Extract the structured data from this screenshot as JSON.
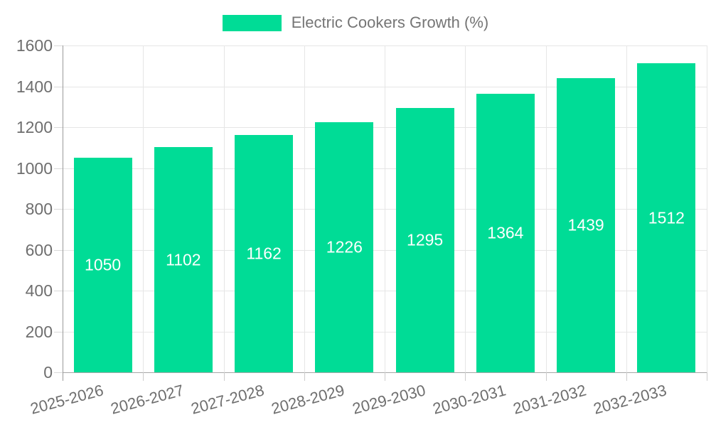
{
  "page": {
    "background": "#ffffff"
  },
  "chart_data": {
    "type": "bar",
    "title": "Electric Cookers Growth (%)",
    "categories": [
      "2025-2026",
      "2026-2027",
      "2027-2028",
      "2028-2029",
      "2029-2030",
      "2030-2031",
      "2031-2032",
      "2032-2033"
    ],
    "values": [
      1050,
      1102,
      1162,
      1226,
      1295,
      1364,
      1439,
      1512
    ],
    "xlabel": "",
    "ylabel": "",
    "ylim": [
      0,
      1600
    ],
    "yticks": [
      0,
      200,
      400,
      600,
      800,
      1000,
      1200,
      1400,
      1600
    ],
    "grid": true,
    "legend_position": "top-center",
    "value_labels_position": "inside-center",
    "x_label_rotation_deg": -15,
    "colors": {
      "bar": "#00DC96",
      "value_text": "#ffffff",
      "legend_text": "#757575",
      "axis_text": "#6e6e6e",
      "gridline": "#e6e6e6",
      "axis_line": "#9a9a9a",
      "baseline": "#a6a6a6"
    }
  }
}
